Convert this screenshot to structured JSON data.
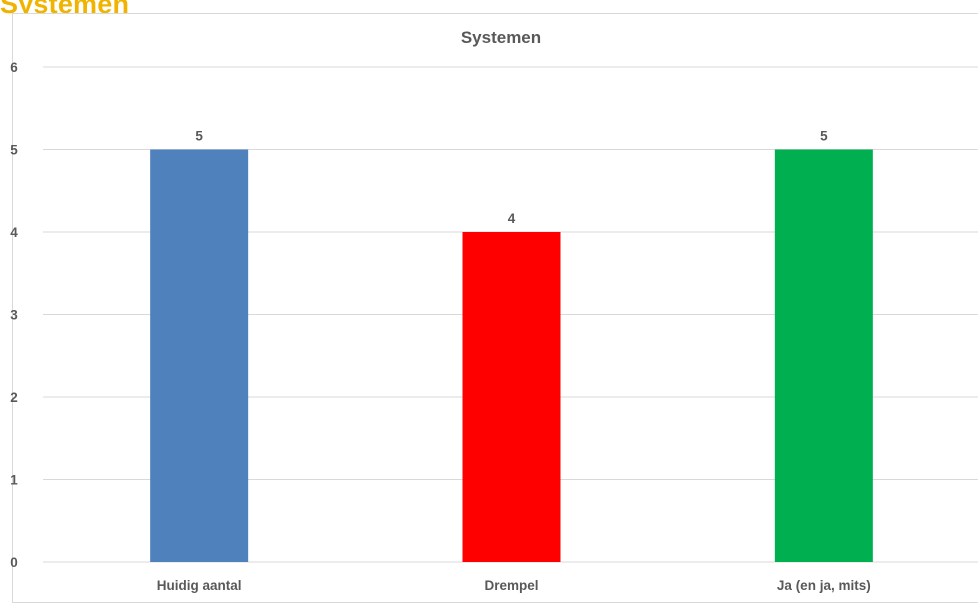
{
  "page": {
    "heading": "Systemen"
  },
  "colors": {
    "heading": "#f0b400",
    "bar_1": "#4f81bd",
    "bar_2": "#ff0000",
    "bar_3": "#00b050",
    "gridline": "#d9d9d9",
    "text": "#595959"
  },
  "chart_data": {
    "type": "bar",
    "title": "Systemen",
    "xlabel": "",
    "ylabel": "",
    "categories": [
      "Huidig aantal",
      "Drempel",
      "Ja (en ja, mits)"
    ],
    "values": [
      5,
      4,
      5
    ],
    "data_labels": [
      "5",
      "4",
      "5"
    ],
    "bar_colors": [
      "#4f81bd",
      "#ff0000",
      "#00b050"
    ],
    "ylim": [
      0,
      6
    ],
    "yticks": [
      0,
      1,
      2,
      3,
      4,
      5,
      6
    ],
    "grid": true,
    "legend": "none"
  }
}
